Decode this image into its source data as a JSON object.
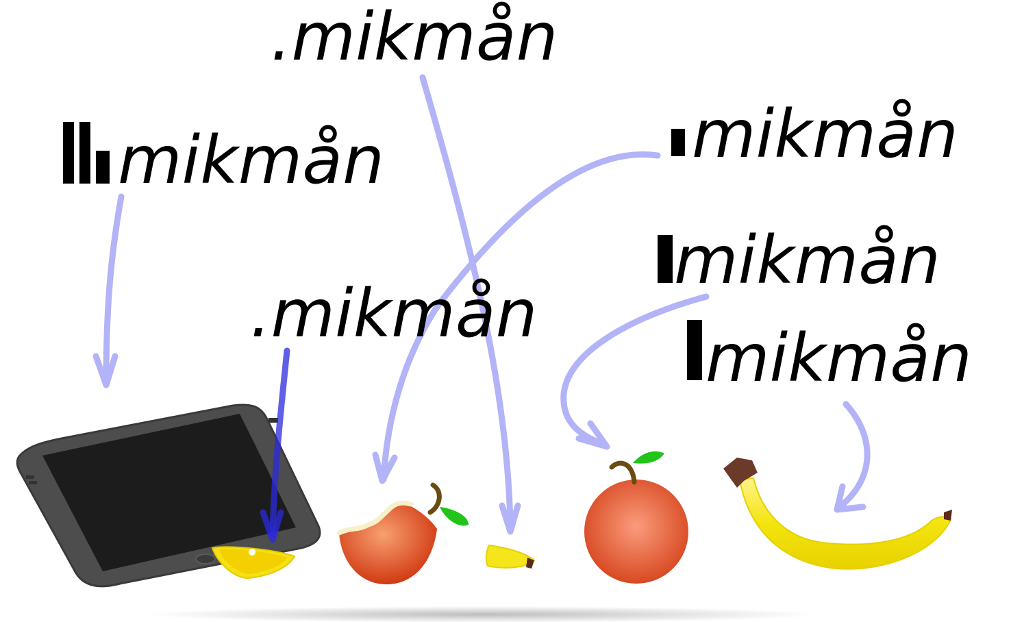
{
  "labels": {
    "tablet_word": "mikmån",
    "top_word": ".mikmån",
    "middle_word": ".mikmån",
    "apple_word": "mikmån",
    "orange_word": "mikmån",
    "banana_word": "mikmån"
  },
  "marks": {
    "tablet": "double-bar-and-short-bar",
    "apple": "dot-bar",
    "orange": "tall-bar",
    "banana": "tall-bar",
    "top": "period",
    "middle": "period"
  },
  "colors": {
    "arrow_light": "#b3b3f7",
    "arrow_dark": "#2a2ae0",
    "text": "#000000",
    "tablet_body": "#4a4a4a",
    "tablet_screen": "#1c1c1c",
    "apple_red": "#d8421c",
    "lemon": "#f3e414",
    "banana": "#f4e61a",
    "leaf": "#22c41a",
    "stem": "#6b4b12"
  },
  "icons": [
    "tablet-icon",
    "lemon-slice-icon",
    "bitten-apple-icon",
    "banana-piece-icon",
    "orange-icon",
    "banana-icon"
  ]
}
